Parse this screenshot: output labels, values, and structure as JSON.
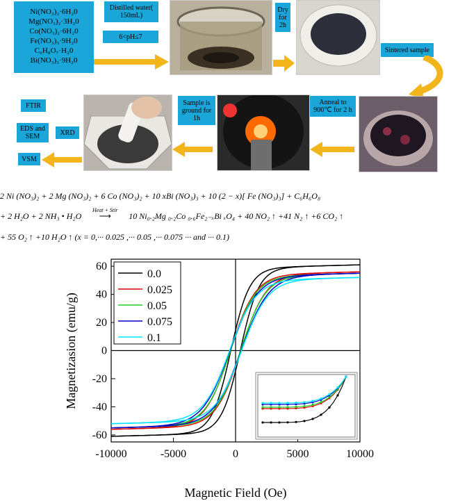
{
  "chemicals": [
    "Ni(NO₃)₂·6H₂0",
    "Mg(NO₃)₂·3H₂0",
    "Co(NO₃)₂·6H₂0",
    "Fe(NO₃)₃·9H₂0",
    "C₆H₈O₇·H₂0",
    "Bi(NO₃)₃·9H₂0"
  ],
  "flow": {
    "water": "Distilled water( 150mL)",
    "ph": "6<pH≤7",
    "dry": "Dry for 2h",
    "sintered": "Sintered sample",
    "anneal": "Anneal to 900℃ for 2 h",
    "ground": "Sample is ground for 1h",
    "ftir": "FTIR",
    "eds": "EDS and SEM",
    "xrd": "XRD",
    "vsm": "VSM"
  },
  "equation": {
    "line1": "2 Ni (NO₃)₂ + 2 Mg (NO₃)₂ + 6 Co (NO₃)₂ + 10 xBi (NO₃)₃ + 10 (2 − x)[ Fe (NO₃)₃] + C₆H₆O₈",
    "line2_left": "+ 2 H₂O + 2 NH₃ • H₂O",
    "line2_arrow": "Heat + Stir",
    "line2_right": "10 Ni₀.₂Mg ₀.₂Co ₀.₆Fe₂₋ₓBi ₓO₄ + 40 NO₂ ↑ +41 N₂ ↑ +6 CO₂ ↑",
    "line3": "+ 55 O₂ ↑ +10 H₂O ↑ (x = 0,··· 0.025 ,··· 0.05 ,··· 0.075 ··· and ··· 0.1)"
  },
  "chart_data": {
    "type": "line",
    "xlabel": "Magnetic Field (Oe)",
    "ylabel": "Magnetizasion (emu/g)",
    "xlim": [
      -10000,
      10000
    ],
    "ylim": [
      -65,
      65
    ],
    "xticks": [
      -10000,
      -5000,
      0,
      5000,
      10000
    ],
    "yticks": [
      -60,
      -40,
      -20,
      0,
      20,
      40,
      60
    ],
    "legend_position": "top-left",
    "inset": true,
    "series": [
      {
        "name": "0.0",
        "color": "#000000",
        "ms": 61,
        "hc": 380,
        "w": 1500
      },
      {
        "name": "0.025",
        "color": "#e00000",
        "ms": 56,
        "hc": 420,
        "w": 2000
      },
      {
        "name": "0.05",
        "color": "#22cc22",
        "ms": 55,
        "hc": 400,
        "w": 2000
      },
      {
        "name": "0.075",
        "color": "#0000cc",
        "ms": 55,
        "hc": 450,
        "w": 2200
      },
      {
        "name": "0.1",
        "color": "#00e5ff",
        "ms": 52,
        "hc": 480,
        "w": 2100
      }
    ]
  }
}
